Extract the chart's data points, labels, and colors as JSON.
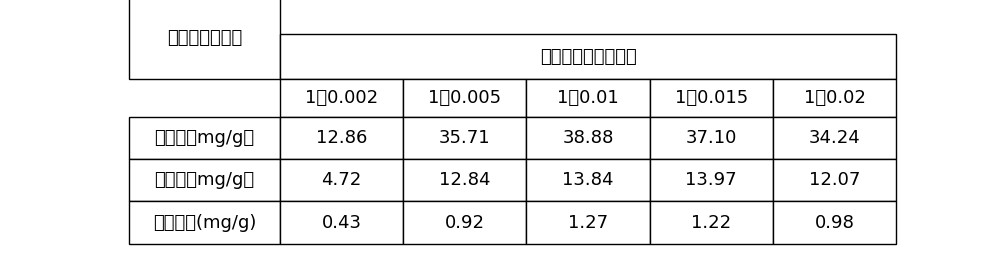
{
  "header_top": "药材质量：酶的质量",
  "header_left": "化有效成分含量",
  "col_headers": [
    "1：0.002",
    "1：0.005",
    "1：0.01",
    "1：0.015",
    "1：0.02"
  ],
  "row_labels": [
    "莫诺苷（mg/g）",
    "马钱苷（mg/g）",
    "獐牙菜苷(mg/g)"
  ],
  "data": [
    [
      "12.86",
      "35.71",
      "38.88",
      "37.10",
      "34.24"
    ],
    [
      "4.72",
      "12.84",
      "13.84",
      "13.97",
      "12.07"
    ],
    [
      "0.43",
      "0.92",
      "1.27",
      "1.22",
      "0.98"
    ]
  ],
  "bg_color": "#ffffff",
  "text_color": "#000000",
  "line_color": "#000000",
  "font_size": 13,
  "header_font_size": 13
}
